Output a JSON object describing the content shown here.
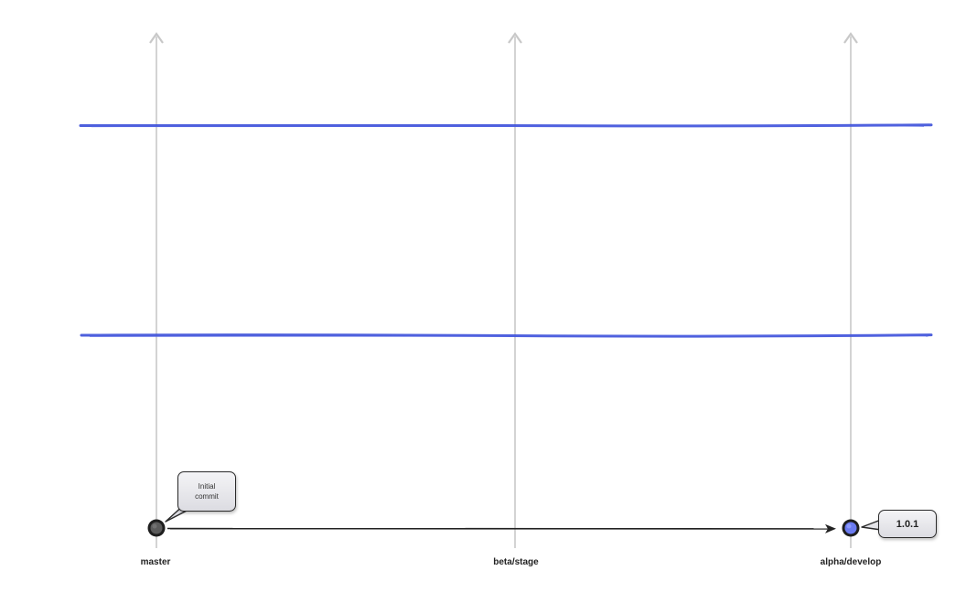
{
  "branches": [
    {
      "name": "master"
    },
    {
      "name": "beta/stage"
    },
    {
      "name": "alpha/develop"
    }
  ],
  "commits": [
    {
      "branch": "master",
      "color": "#5b5b5b",
      "note": "Initial commit"
    },
    {
      "branch": "alpha/develop",
      "color": "#6b7bf0",
      "tag": "1.0.1"
    }
  ],
  "merge_arrow": {
    "from": "master",
    "to": "alpha/develop"
  },
  "colors": {
    "branch_line": "#c8c8c8",
    "separator": "#3b4fd8",
    "arrow": "#222222"
  },
  "labels": {
    "initial_commit": "Initial commit",
    "tag": "1.0.1"
  }
}
